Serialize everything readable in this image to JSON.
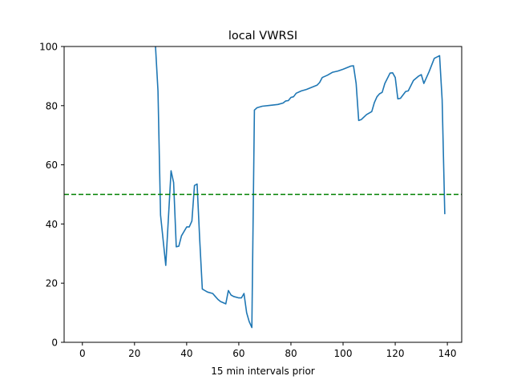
{
  "chart_data": {
    "type": "line",
    "title": "local VWRSI",
    "xlabel": "15 min intervals prior",
    "ylabel": "",
    "xlim": [
      -7,
      145.5
    ],
    "ylim": [
      0,
      100
    ],
    "xticks": [
      0,
      20,
      40,
      60,
      80,
      100,
      120,
      140
    ],
    "yticks": [
      0,
      20,
      40,
      60,
      80,
      100
    ],
    "grid": false,
    "series": [
      {
        "name": "local VWRSI",
        "color": "#1f77b4",
        "points": [
          [
            28,
            101
          ],
          [
            29,
            85
          ],
          [
            30,
            43
          ],
          [
            32,
            26
          ],
          [
            34,
            58
          ],
          [
            35,
            54
          ],
          [
            36,
            32.3
          ],
          [
            37,
            32.5
          ],
          [
            38,
            36
          ],
          [
            40,
            39
          ],
          [
            41,
            39
          ],
          [
            42,
            41
          ],
          [
            43,
            53
          ],
          [
            44,
            53.5
          ],
          [
            45,
            35
          ],
          [
            46,
            18
          ],
          [
            48,
            17
          ],
          [
            50,
            16.5
          ],
          [
            51,
            15.5
          ],
          [
            52,
            14.5
          ],
          [
            53,
            13.8
          ],
          [
            55,
            13
          ],
          [
            56,
            17.5
          ],
          [
            57,
            16
          ],
          [
            58,
            15.5
          ],
          [
            60,
            15
          ],
          [
            61,
            15
          ],
          [
            62,
            16.5
          ],
          [
            63,
            10
          ],
          [
            64,
            7
          ],
          [
            65,
            5
          ],
          [
            66,
            78.5
          ],
          [
            67,
            79.3
          ],
          [
            69,
            79.8
          ],
          [
            72,
            80.1
          ],
          [
            75,
            80.4
          ],
          [
            77,
            80.9
          ],
          [
            78,
            81.6
          ],
          [
            79,
            81.7
          ],
          [
            80,
            82.8
          ],
          [
            81,
            83
          ],
          [
            82,
            84.2
          ],
          [
            84,
            85
          ],
          [
            86,
            85.5
          ],
          [
            88,
            86.2
          ],
          [
            90,
            86.9
          ],
          [
            91,
            87.8
          ],
          [
            92,
            89.5
          ],
          [
            94,
            90.3
          ],
          [
            96,
            91.3
          ],
          [
            98,
            91.7
          ],
          [
            100,
            92.3
          ],
          [
            102,
            93
          ],
          [
            103,
            93.4
          ],
          [
            104,
            93.5
          ],
          [
            105,
            87.5
          ],
          [
            106,
            75
          ],
          [
            107,
            75.3
          ],
          [
            109,
            77
          ],
          [
            111,
            78
          ],
          [
            112,
            81
          ],
          [
            113,
            83
          ],
          [
            114,
            84
          ],
          [
            115,
            84.5
          ],
          [
            116,
            87.5
          ],
          [
            118,
            91
          ],
          [
            119,
            91.1
          ],
          [
            120,
            89.5
          ],
          [
            121,
            82.3
          ],
          [
            122,
            82.5
          ],
          [
            124,
            84.8
          ],
          [
            125,
            85
          ],
          [
            127,
            88.5
          ],
          [
            129,
            90
          ],
          [
            130,
            90.5
          ],
          [
            131,
            87.5
          ],
          [
            133,
            91.5
          ],
          [
            135,
            96
          ],
          [
            137,
            96.9
          ],
          [
            138,
            82
          ],
          [
            139,
            43.3
          ]
        ]
      }
    ],
    "reference_lines": [
      {
        "axis": "y",
        "value": 50,
        "color": "#008000",
        "style": "dashed"
      }
    ]
  }
}
